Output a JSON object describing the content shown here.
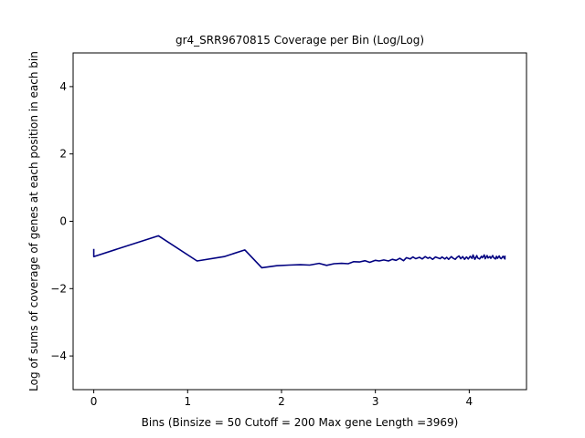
{
  "chart_data": {
    "type": "line",
    "title": "gr4_SRR9670815 Coverage per Bin (Log/Log)",
    "xlabel": "Bins  (Binsize = 50 Cutoff = 200 Max gene Length =3969)",
    "ylabel": "Log of sums of coverage of genes at each position in each bin",
    "xlim": [
      -0.22,
      4.61
    ],
    "ylim": [
      -5,
      5
    ],
    "xticks": [
      0,
      1,
      2,
      3,
      4
    ],
    "xtick_labels": [
      "0",
      "1",
      "2",
      "3",
      "4"
    ],
    "yticks": [
      -4,
      -2,
      0,
      2,
      4
    ],
    "ytick_labels": [
      "−4",
      "−2",
      "0",
      "2",
      "4"
    ],
    "grid": false,
    "legend": "none",
    "series": [
      {
        "color": "#000080",
        "x": [
          0,
          0,
          0.69,
          1.1,
          1.39,
          1.61,
          1.79,
          1.95,
          2.08,
          2.2,
          2.3,
          2.4,
          2.48,
          2.56,
          2.64,
          2.71,
          2.77,
          2.83,
          2.89,
          2.94,
          3.0,
          3.04,
          3.09,
          3.14,
          3.18,
          3.22,
          3.26,
          3.3,
          3.33,
          3.37,
          3.4,
          3.43,
          3.47,
          3.5,
          3.53,
          3.56,
          3.58,
          3.61,
          3.64,
          3.66,
          3.69,
          3.71,
          3.74,
          3.76,
          3.78,
          3.81,
          3.83,
          3.85,
          3.87,
          3.89,
          3.91,
          3.93,
          3.95,
          3.97,
          3.99,
          4.01,
          4.03,
          4.04,
          4.06,
          4.08,
          4.09,
          4.11,
          4.13,
          4.14,
          4.16,
          4.17,
          4.19,
          4.2,
          4.22,
          4.23,
          4.25,
          4.26,
          4.28,
          4.29,
          4.3,
          4.32,
          4.33,
          4.34,
          4.36,
          4.37,
          4.38,
          4.38
        ],
        "y": [
          -0.82,
          -1.05,
          -0.43,
          -1.18,
          -1.05,
          -0.85,
          -1.38,
          -1.32,
          -1.3,
          -1.29,
          -1.3,
          -1.25,
          -1.31,
          -1.26,
          -1.25,
          -1.26,
          -1.2,
          -1.21,
          -1.17,
          -1.22,
          -1.16,
          -1.18,
          -1.15,
          -1.18,
          -1.13,
          -1.16,
          -1.1,
          -1.17,
          -1.08,
          -1.12,
          -1.06,
          -1.11,
          -1.07,
          -1.12,
          -1.05,
          -1.1,
          -1.07,
          -1.13,
          -1.06,
          -1.08,
          -1.11,
          -1.06,
          -1.12,
          -1.07,
          -1.13,
          -1.05,
          -1.1,
          -1.13,
          -1.07,
          -1.03,
          -1.11,
          -1.05,
          -1.13,
          -1.06,
          -1.12,
          -1.04,
          -1.1,
          -1.0,
          -1.13,
          -1.02,
          -1.09,
          -1.12,
          -1.04,
          -1.08,
          -1.0,
          -1.11,
          -1.02,
          -1.09,
          -1.05,
          -1.1,
          -1.02,
          -1.08,
          -1.12,
          -1.04,
          -1.1,
          -1.03,
          -1.09,
          -1.11,
          -1.04,
          -1.08,
          -1.12,
          -1.02
        ]
      }
    ]
  }
}
